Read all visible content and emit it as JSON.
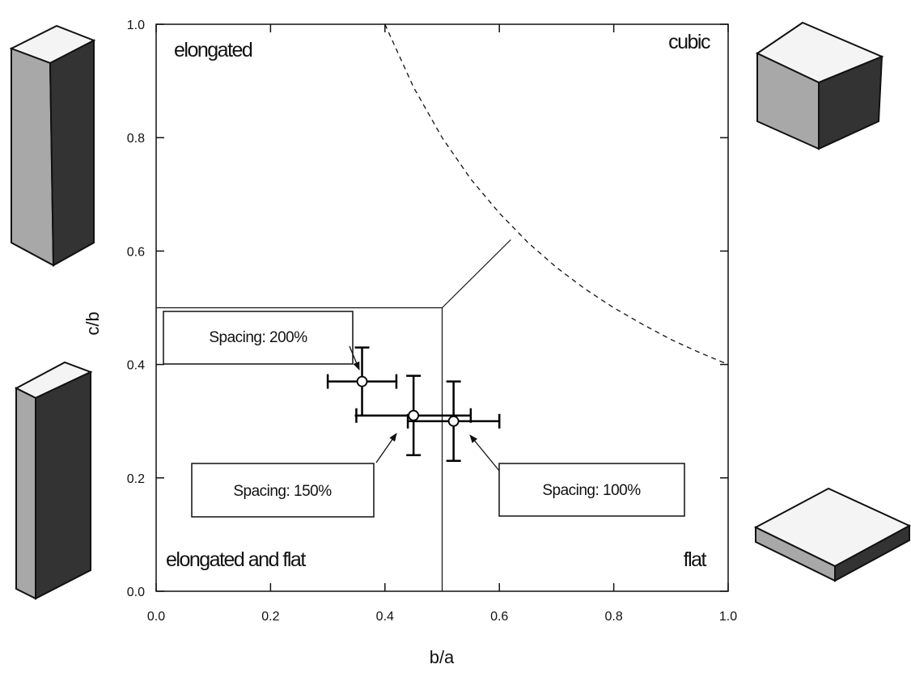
{
  "chart_data": {
    "type": "scatter",
    "x_label": "b/a",
    "y_label": "c/b",
    "xlim": [
      0,
      1
    ],
    "ylim": [
      0,
      1
    ],
    "xticks": [
      {
        "value": 0,
        "label": "0.0"
      },
      {
        "value": 0.2,
        "label": "0.2"
      },
      {
        "value": 0.4,
        "label": "0.4"
      },
      {
        "value": 0.6,
        "label": "0.6"
      },
      {
        "value": 0.8,
        "label": "0.8"
      },
      {
        "value": 1,
        "label": "1.0"
      }
    ],
    "yticks": [
      {
        "value": 0,
        "label": "0.0"
      },
      {
        "value": 0.2,
        "label": "0.2"
      },
      {
        "value": 0.4,
        "label": "0.4"
      },
      {
        "value": 0.6,
        "label": "0.6"
      },
      {
        "value": 0.8,
        "label": "0.8"
      },
      {
        "value": 1,
        "label": "1.0"
      }
    ],
    "grid": false,
    "series": [
      {
        "color": "#000000",
        "x": [
          0.36,
          0.45,
          0.52
        ],
        "y": [
          0.37,
          0.31,
          0.3
        ],
        "xerr": [
          0.06,
          0.1,
          0.08
        ],
        "yerr": [
          0.06,
          0.07,
          0.07
        ]
      }
    ],
    "boundaries": [
      {
        "x": [
          0,
          0.5,
          0.5
        ],
        "y": [
          0.5,
          0.5,
          0
        ]
      },
      {
        "x": [
          0.5,
          0.62
        ],
        "y": [
          0.5,
          0.62
        ]
      }
    ],
    "reference_curve": {
      "x": [
        0.4,
        0.45,
        0.5,
        0.55,
        0.6,
        0.65,
        0.7,
        0.75,
        0.8,
        0.85,
        0.9,
        0.95,
        1.0
      ],
      "y": [
        1.0,
        0.889,
        0.8,
        0.727,
        0.667,
        0.615,
        0.571,
        0.533,
        0.5,
        0.471,
        0.444,
        0.421,
        0.4
      ]
    },
    "regions": [
      "elongated",
      "cubic",
      "elongated and flat",
      "flat"
    ],
    "callouts": [
      "Spacing: 200%",
      "Spacing: 150%",
      "Spacing: 100%"
    ]
  }
}
